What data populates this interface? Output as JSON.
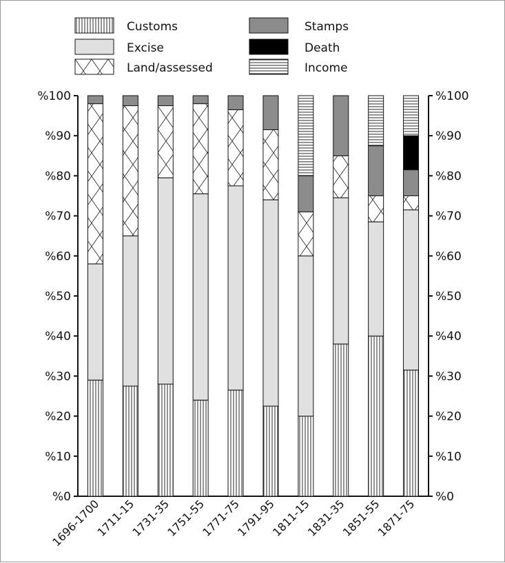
{
  "chart_data": {
    "type": "bar",
    "stacked": true,
    "title": "",
    "xlabel": "",
    "ylabel": "",
    "ylim": [
      0,
      100
    ],
    "y_ticks": [
      "%0",
      "%10",
      "%20",
      "%30",
      "%40",
      "%50",
      "%60",
      "%70",
      "%80",
      "%90",
      "%100"
    ],
    "y_ticks_right": [
      "%0",
      "%10",
      "%20",
      "%30",
      "%40",
      "%50",
      "%60",
      "%70",
      "%80",
      "%90",
      "%100"
    ],
    "grid": false,
    "legend_position": "top",
    "categories": [
      "1696-1700",
      "1711-15",
      "1731-35",
      "1751-55",
      "1771-75",
      "1791-95",
      "1811-15",
      "1831-35",
      "1851-55",
      "1871-75"
    ],
    "series": [
      {
        "name": "Customs",
        "pattern": "vertical-lines",
        "color": "#ffffff",
        "values": [
          29,
          27.5,
          28,
          24,
          26.5,
          22.5,
          20,
          38,
          40,
          31.5
        ]
      },
      {
        "name": "Excise",
        "pattern": "solid",
        "color": "#e0e0e0",
        "values": [
          29,
          37.5,
          51.5,
          51.5,
          51,
          51.5,
          40,
          36.5,
          28.5,
          40
        ]
      },
      {
        "name": "Land/assessed",
        "pattern": "cross-hatch",
        "color": "#ffffff",
        "values": [
          40,
          32.5,
          18,
          22.5,
          19,
          17.5,
          11,
          10.5,
          6.5,
          3.5
        ]
      },
      {
        "name": "Stamps",
        "pattern": "solid",
        "color": "#8c8c8c",
        "values": [
          2,
          2.5,
          2.5,
          2,
          3.5,
          8.5,
          9,
          15,
          12.5,
          6.5
        ]
      },
      {
        "name": "Death",
        "pattern": "solid",
        "color": "#000000",
        "values": [
          0,
          0,
          0,
          0,
          0,
          0,
          0,
          0,
          0,
          8.5
        ]
      },
      {
        "name": "Income",
        "pattern": "horizontal-lines",
        "color": "#ffffff",
        "values": [
          0,
          0,
          0,
          0,
          0,
          0,
          20,
          0,
          12.5,
          10
        ]
      }
    ]
  }
}
